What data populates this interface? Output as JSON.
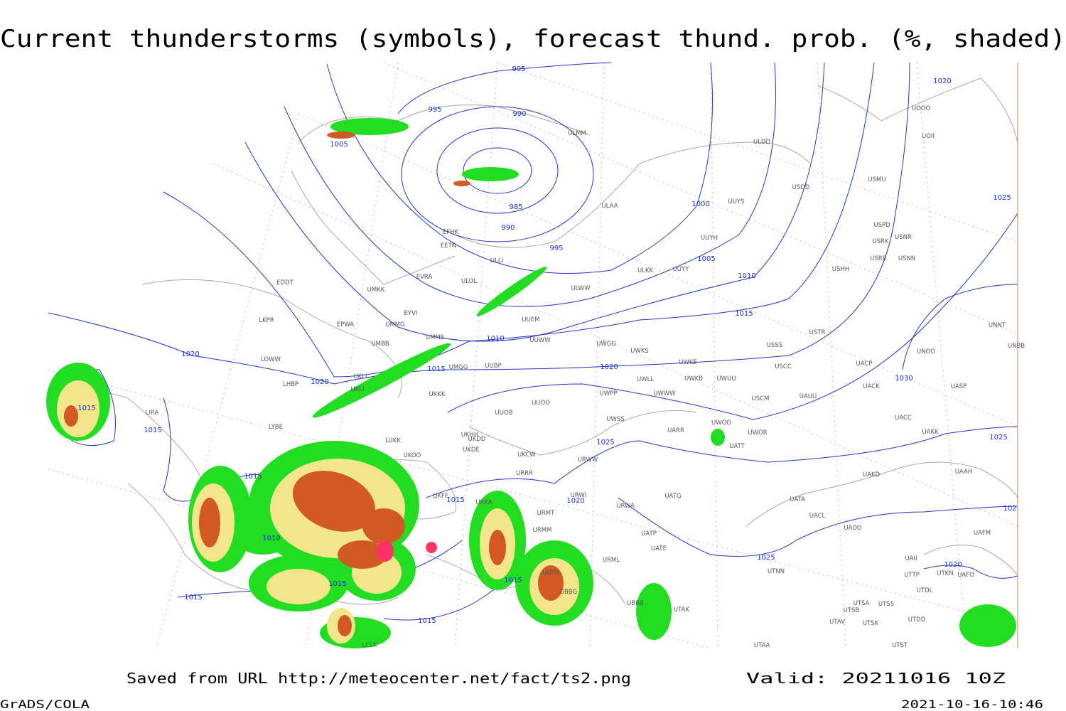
{
  "header": {
    "title": "Current thunderstorms (symbols), forecast thund. prob. (%, shaded)"
  },
  "footer": {
    "source": "Saved from URL http://meteocenter.net/fact/ts2.png",
    "valid": "Valid: 20211016 10Z",
    "software": "GrADS/COLA",
    "timestamp": "2021-10-16-10:46"
  },
  "isobar_labels": [
    "995",
    "995",
    "990",
    "1005",
    "985",
    "990",
    "995",
    "1000",
    "1005",
    "1010",
    "1015",
    "1010",
    "1015",
    "1020",
    "1020",
    "1020",
    "1015",
    "1015",
    "1015",
    "1010",
    "1015",
    "1020",
    "1025",
    "1015",
    "1015",
    "1015",
    "1015",
    "1025",
    "1030",
    "1025",
    "1020",
    "1025",
    "102",
    "1020"
  ],
  "stations": [
    "ULMM",
    "ULDD",
    "USDD",
    "USMU",
    "UOOO",
    "UOII",
    "ULAA",
    "UUYS",
    "UUYH",
    "USPD",
    "USRK",
    "USNR",
    "USRR",
    "USNN",
    "USHH",
    "EFHK",
    "EETN",
    "ULLI",
    "ULOL",
    "ULKK",
    "UUYY",
    "ULWW",
    "EVRA",
    "UMKK",
    "EYVI",
    "UUEM",
    "UMMG",
    "EPWA",
    "LKPR",
    "EDDT",
    "UMMS",
    "UUWW",
    "UWGG",
    "UWKS",
    "USSS",
    "USTR",
    "UNNT",
    "UNBB",
    "UNOO",
    "UMBB",
    "UKLL",
    "UKLI",
    "LOWW",
    "LHBP",
    "UUBP",
    "UMGG",
    "UWKE",
    "UWKB",
    "UWUU",
    "USCC",
    "UACP",
    "UACK",
    "UASP",
    "UWLL",
    "UWWW",
    "USCM",
    "UAUU",
    "UKKK",
    "UWPP",
    "UUOO",
    "LIRA",
    "UUOB",
    "UWSS",
    "UACC",
    "UAKK",
    "LYBE",
    "UKHH",
    "UARR",
    "UWOO",
    "UWOR",
    "UATT",
    "LUKK",
    "UKOO",
    "UKDD",
    "UKDE",
    "UKCW",
    "URWW",
    "URRR",
    "UAKD",
    "UAAH",
    "UKFF",
    "URKA",
    "URWI",
    "UATG",
    "URWA",
    "UATA",
    "UACL",
    "UAOO",
    "URMT",
    "URMM",
    "UATP",
    "UATE",
    "URML",
    "UAII",
    "UTNN",
    "UTTP",
    "UTKN",
    "UAFO",
    "UGTB",
    "UTDL",
    "UBBG",
    "UTSA",
    "UTSS",
    "UTSB",
    "UTAK",
    "UTAV",
    "UTSK",
    "UTDD",
    "UAFM",
    "UTAA",
    "UTST",
    "LCLK",
    "UBBB"
  ]
}
